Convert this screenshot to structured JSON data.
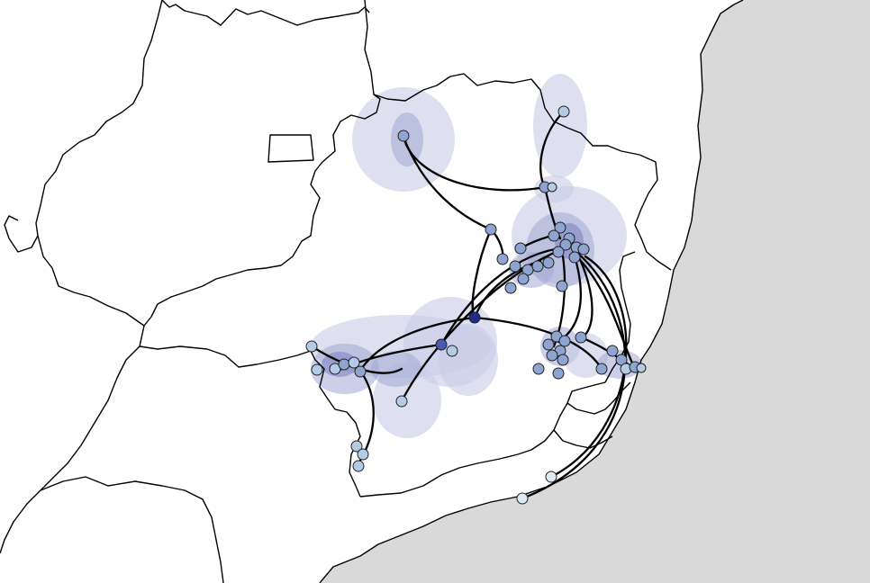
{
  "colors": {
    "land": "#ffffff",
    "ocean": "#d9d9d9",
    "border": "#000000",
    "route": "#000000",
    "density_light": "#c8cbe6",
    "density_mid": "#a3a7d4",
    "density_dark": "#7377bd",
    "node_pale": "#dceaf6",
    "node_light": "#b4cbe6",
    "node_mid": "#8ea5d2",
    "node_dark": "#4a5ab0",
    "node_darkest": "#1e2c8a"
  },
  "map": {
    "type": "phylogeographic spread map",
    "text_labels": []
  }
}
